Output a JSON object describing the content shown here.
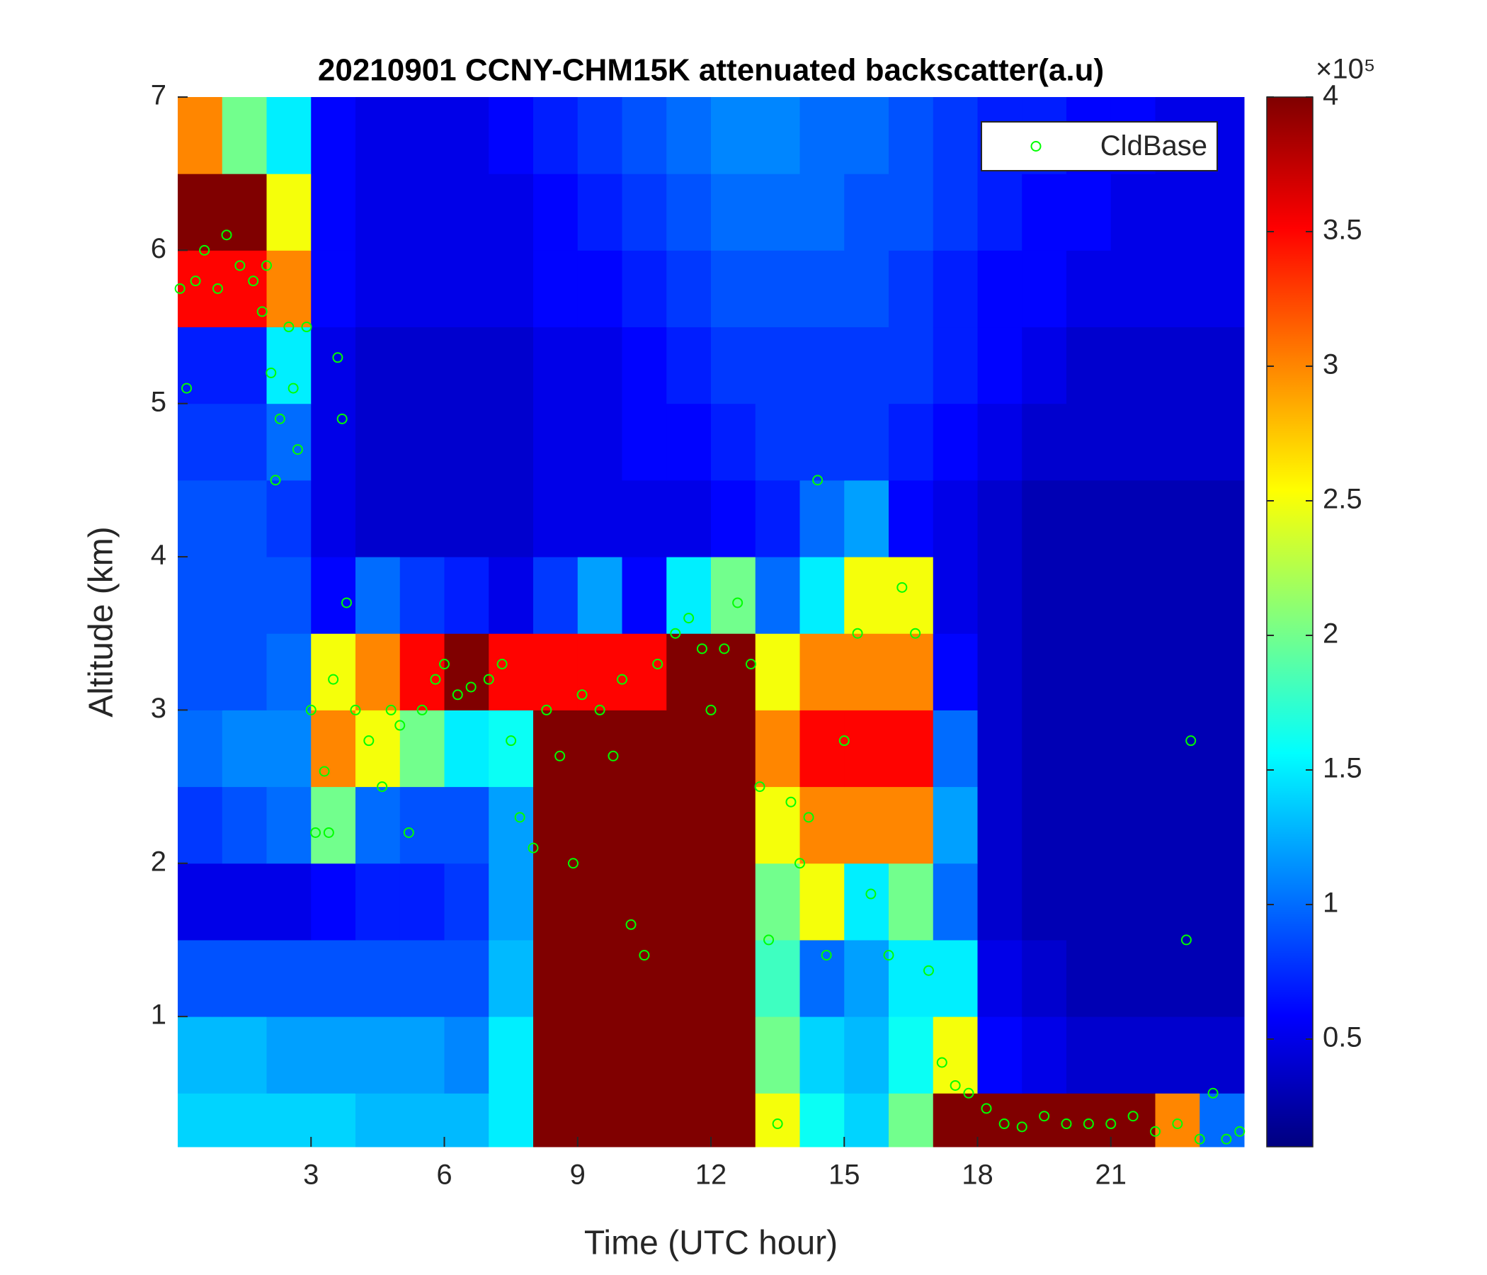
{
  "chart_data": {
    "type": "heatmap",
    "title": "20210901 CCNY-CHM15K attenuated backscatter(a.u)",
    "x_label": "Time (UTC hour)",
    "y_label": "Altitude (km)",
    "xlim": [
      0,
      24
    ],
    "xticks": [
      3,
      6,
      9,
      12,
      15,
      18,
      21
    ],
    "ylim": [
      0.15,
      7
    ],
    "yticks": [
      1,
      2,
      3,
      4,
      5,
      6,
      7
    ],
    "x_bins": [
      0,
      1,
      2,
      3,
      4,
      5,
      6,
      7,
      8,
      9,
      10,
      11,
      12,
      13,
      14,
      15,
      16,
      17,
      18,
      19,
      20,
      21,
      22,
      23,
      24
    ],
    "y_bins": [
      0.15,
      0.5,
      1,
      1.5,
      2,
      2.5,
      3,
      3.5,
      4,
      4.5,
      5,
      5.5,
      6,
      6.5,
      7
    ],
    "z": [
      [
        1.4,
        1.4,
        1.4,
        1.4,
        1.3,
        1.3,
        1.3,
        1.5,
        4,
        4,
        4,
        4,
        4,
        2.5,
        1.6,
        1.4,
        2.0,
        4,
        4,
        4,
        4,
        4,
        3,
        1
      ],
      [
        1.3,
        1.3,
        1.2,
        1.2,
        1.2,
        1.2,
        1.1,
        1.5,
        4,
        4,
        4,
        4,
        4,
        2.0,
        1.4,
        1.3,
        1.6,
        2.5,
        0.6,
        0.5,
        0.4,
        0.4,
        0.4,
        0.4
      ],
      [
        0.9,
        0.9,
        0.9,
        0.9,
        0.9,
        0.9,
        0.9,
        1.3,
        4,
        4,
        4,
        4,
        4,
        1.8,
        1.0,
        1.2,
        1.5,
        1.5,
        0.5,
        0.4,
        0.3,
        0.3,
        0.3,
        0.3
      ],
      [
        0.5,
        0.5,
        0.5,
        0.6,
        0.7,
        0.7,
        0.8,
        1.2,
        4,
        4,
        4,
        4,
        4,
        2.0,
        2.5,
        1.5,
        2.0,
        1.0,
        0.4,
        0.3,
        0.3,
        0.3,
        0.3,
        0.3
      ],
      [
        0.8,
        0.9,
        1.0,
        2.0,
        1.0,
        0.9,
        0.9,
        1.2,
        4,
        4,
        4,
        4,
        4,
        2.5,
        3.0,
        3.0,
        3.0,
        1.2,
        0.4,
        0.3,
        0.3,
        0.3,
        0.3,
        0.3
      ],
      [
        1.0,
        1.1,
        1.1,
        3.0,
        2.5,
        2.0,
        1.5,
        1.6,
        4,
        4,
        4,
        4,
        4,
        3.0,
        3.5,
        3.5,
        3.5,
        1.0,
        0.4,
        0.3,
        0.3,
        0.3,
        0.3,
        0.3
      ],
      [
        0.9,
        0.9,
        1.0,
        2.5,
        3.0,
        3.5,
        4,
        3.5,
        3.5,
        3.5,
        3.5,
        4,
        4,
        2.5,
        3.0,
        3.0,
        3.0,
        0.6,
        0.4,
        0.3,
        0.3,
        0.3,
        0.3,
        0.3
      ],
      [
        0.9,
        0.9,
        0.9,
        0.6,
        1.0,
        0.8,
        0.7,
        0.5,
        0.8,
        1.2,
        0.6,
        1.5,
        2.0,
        1.0,
        1.5,
        2.5,
        2.5,
        0.5,
        0.4,
        0.3,
        0.3,
        0.3,
        0.3,
        0.3
      ],
      [
        0.9,
        0.9,
        0.8,
        0.5,
        0.4,
        0.4,
        0.4,
        0.4,
        0.5,
        0.5,
        0.5,
        0.5,
        0.6,
        0.7,
        1.0,
        1.2,
        0.6,
        0.5,
        0.4,
        0.3,
        0.3,
        0.3,
        0.3,
        0.3
      ],
      [
        0.8,
        0.8,
        1.0,
        0.5,
        0.4,
        0.4,
        0.4,
        0.4,
        0.5,
        0.5,
        0.6,
        0.6,
        0.7,
        0.8,
        0.8,
        0.8,
        0.7,
        0.6,
        0.5,
        0.4,
        0.4,
        0.4,
        0.4,
        0.4
      ],
      [
        0.7,
        0.7,
        1.5,
        0.5,
        0.4,
        0.4,
        0.4,
        0.4,
        0.5,
        0.5,
        0.6,
        0.7,
        0.8,
        0.8,
        0.8,
        0.8,
        0.8,
        0.7,
        0.6,
        0.5,
        0.4,
        0.4,
        0.4,
        0.4
      ],
      [
        3.5,
        3.5,
        3.0,
        0.6,
        0.5,
        0.5,
        0.5,
        0.5,
        0.6,
        0.6,
        0.7,
        0.8,
        0.9,
        0.9,
        0.9,
        0.9,
        0.8,
        0.7,
        0.6,
        0.6,
        0.5,
        0.5,
        0.5,
        0.5
      ],
      [
        4,
        4,
        2.5,
        0.6,
        0.5,
        0.5,
        0.5,
        0.5,
        0.6,
        0.7,
        0.8,
        0.9,
        1.0,
        1.0,
        1.0,
        0.9,
        0.9,
        0.8,
        0.7,
        0.6,
        0.6,
        0.5,
        0.5,
        0.5
      ],
      [
        3.0,
        2.0,
        1.5,
        0.6,
        0.5,
        0.5,
        0.5,
        0.6,
        0.7,
        0.8,
        0.9,
        1.0,
        1.1,
        1.1,
        1.0,
        1.0,
        0.9,
        0.8,
        0.7,
        0.7,
        0.6,
        0.6,
        0.5,
        0.5
      ]
    ],
    "colormap": "jet",
    "clim": [
      0.1,
      4
    ],
    "cticks": [
      0.5,
      1,
      1.5,
      2,
      2.5,
      3,
      3.5,
      4
    ],
    "colorbar_scale": "×10⁵",
    "legend": "upper right",
    "series": [
      {
        "name": "CldBase",
        "type": "scatter",
        "color": "#00ff00",
        "x": [
          0.05,
          0.2,
          0.4,
          0.6,
          0.9,
          1.1,
          1.4,
          1.7,
          1.9,
          2.0,
          2.1,
          2.2,
          2.3,
          2.5,
          2.6,
          2.7,
          2.9,
          3.0,
          3.1,
          3.3,
          3.4,
          3.5,
          3.6,
          3.7,
          3.8,
          4.0,
          4.3,
          4.6,
          4.8,
          5.0,
          5.2,
          5.5,
          5.8,
          6.0,
          6.3,
          6.6,
          7.0,
          7.3,
          7.5,
          7.7,
          8.0,
          8.3,
          8.6,
          8.9,
          9.1,
          9.5,
          9.8,
          10.0,
          10.2,
          10.5,
          10.8,
          11.2,
          11.5,
          11.8,
          12.0,
          12.3,
          12.6,
          12.9,
          13.1,
          13.3,
          13.5,
          13.8,
          14.0,
          14.2,
          14.4,
          14.6,
          15.0,
          15.3,
          15.6,
          16.0,
          16.3,
          16.6,
          16.9,
          17.2,
          17.5,
          17.8,
          18.2,
          18.6,
          19.0,
          19.5,
          20.0,
          20.5,
          21.0,
          21.5,
          22.0,
          22.5,
          22.7,
          22.8,
          23.0,
          23.3,
          23.6,
          23.9
        ],
        "y": [
          5.75,
          5.1,
          5.8,
          6.0,
          5.75,
          6.1,
          5.9,
          5.8,
          5.6,
          5.9,
          5.2,
          4.5,
          4.9,
          5.5,
          5.1,
          4.7,
          5.5,
          3.0,
          2.2,
          2.6,
          2.2,
          3.2,
          5.3,
          4.9,
          3.7,
          3.0,
          2.8,
          2.5,
          3.0,
          2.9,
          2.2,
          3.0,
          3.2,
          3.3,
          3.1,
          3.15,
          3.2,
          3.3,
          2.8,
          2.3,
          2.1,
          3.0,
          2.7,
          2.0,
          3.1,
          3.0,
          2.7,
          3.2,
          1.6,
          1.4,
          3.3,
          3.5,
          3.6,
          3.4,
          3.0,
          3.4,
          3.7,
          3.3,
          2.5,
          1.5,
          0.3,
          2.4,
          2.0,
          2.3,
          4.5,
          1.4,
          2.8,
          3.5,
          1.8,
          1.4,
          3.8,
          3.5,
          1.3,
          0.7,
          0.55,
          0.5,
          0.4,
          0.3,
          0.28,
          0.35,
          0.3,
          0.3,
          0.3,
          0.35,
          0.25,
          0.3,
          1.5,
          2.8,
          0.2,
          0.5,
          0.2,
          0.25
        ]
      }
    ]
  }
}
